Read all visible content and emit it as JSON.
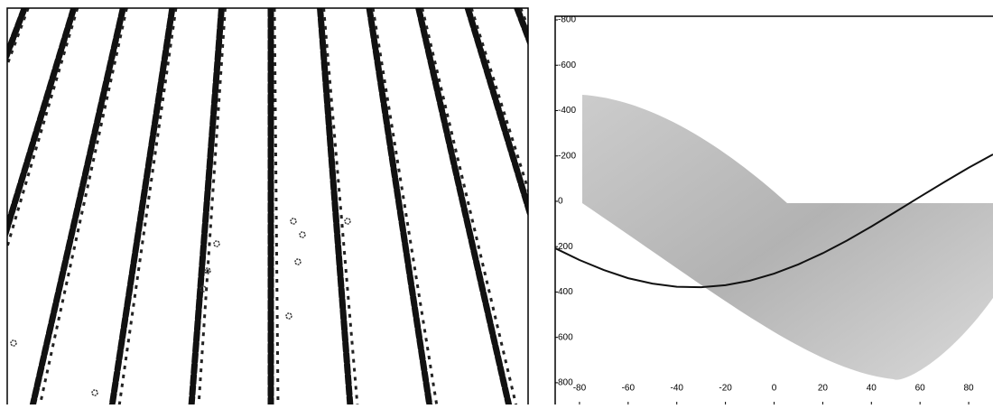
{
  "chart_data": {
    "type": "hough",
    "x": [
      -90,
      -80,
      -70,
      -60,
      -50,
      -40,
      -30,
      -20,
      -10,
      0,
      10,
      20,
      30,
      40,
      50,
      60,
      70,
      80,
      90
    ],
    "series": [
      {
        "color": "#111111",
        "values": [
          207,
          259,
          303,
          339,
          363,
          377,
          379,
          370,
          350,
          319,
          278,
          229,
          173,
          111,
          46,
          -20,
          -85,
          -148,
          -207
        ]
      }
    ],
    "xlim": [
      -90,
      90
    ],
    "xticks": [
      -80,
      -60,
      -40,
      -20,
      0,
      20,
      40,
      60,
      80
    ],
    "ylim": [
      -816,
      896
    ],
    "y_inverted": true,
    "yticks": [
      -800,
      -600,
      -400,
      -200,
      0,
      200,
      400,
      600,
      800
    ]
  }
}
